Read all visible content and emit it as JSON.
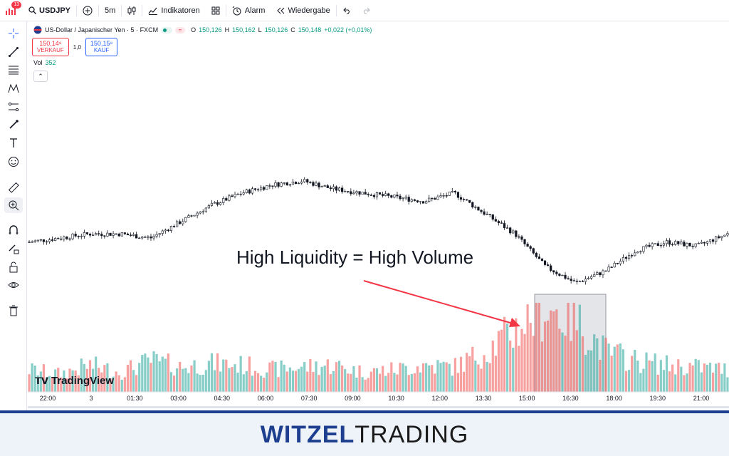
{
  "topbar": {
    "notifications": "13",
    "symbol": "USDJPY",
    "interval": "5m",
    "indicators_label": "Indikatoren",
    "alert_label": "Alarm",
    "replay_label": "Wiedergabe"
  },
  "legend": {
    "name": "US-Dollar / Japanischer Yen · 5 · FXCM",
    "open_label": "O",
    "open": "150,126",
    "high_label": "H",
    "high": "150,162",
    "low_label": "L",
    "low": "150,126",
    "close_label": "C",
    "close": "150,148",
    "change": "+0,022 (+0,01%)"
  },
  "trade": {
    "sell_price": "150,14⁸",
    "sell_label": "VERKAUF",
    "spread": "1,0",
    "buy_price": "150,15⁸",
    "buy_label": "KAUF"
  },
  "volume": {
    "label": "Vol",
    "value": "352"
  },
  "annotation": "High Liquidity = High Volume",
  "watermark": "TradingView",
  "brand": {
    "part1": "WITZEL",
    "part2": "TRADING"
  },
  "colors": {
    "up": "#26a69a",
    "down": "#ef5350",
    "accent": "#2962ff",
    "arrow": "#f23645",
    "brand": "#1e3f8f"
  },
  "chart_data": {
    "type": "line",
    "x_tick_labels": [
      "22:00",
      "3",
      "01:30",
      "03:00",
      "04:30",
      "06:00",
      "07:30",
      "09:00",
      "10:30",
      "12:00",
      "13:30",
      "15:00",
      "16:30",
      "18:00",
      "19:30",
      "21:00"
    ],
    "price_approx": [
      150.04,
      150.05,
      150.06,
      150.06,
      150.05,
      150.09,
      150.13,
      150.16,
      150.18,
      150.19,
      150.17,
      150.16,
      150.15,
      150.14,
      150.16,
      150.11,
      150.06,
      149.98,
      149.94,
      149.97,
      150.02,
      150.04,
      150.03,
      150.06
    ],
    "volume_approx": [
      25,
      20,
      30,
      22,
      35,
      28,
      32,
      30,
      25,
      28,
      30,
      22,
      25,
      30,
      28,
      45,
      70,
      95,
      80,
      45,
      35,
      30,
      28,
      25
    ]
  }
}
